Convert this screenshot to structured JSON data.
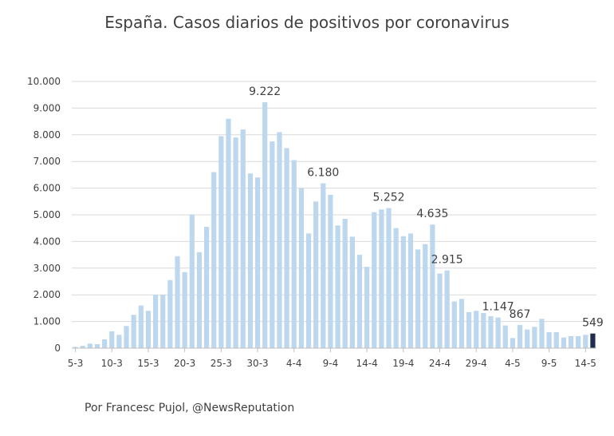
{
  "chart_data": {
    "type": "bar",
    "title": "España. Casos diarios de positivos por coronavirus",
    "source": "Por Francesc Pujol, @NewsReputation",
    "xlabel": "",
    "ylabel": "",
    "ylim": [
      0,
      10000
    ],
    "yticks": [
      "0",
      "1.000",
      "2.000",
      "3.000",
      "4.000",
      "5.000",
      "6.000",
      "7.000",
      "8.000",
      "9.000",
      "10.000"
    ],
    "ytick_values": [
      0,
      1000,
      2000,
      3000,
      4000,
      5000,
      6000,
      7000,
      8000,
      9000,
      10000
    ],
    "grid": true,
    "categories": [
      "5-3",
      "6-3",
      "7-3",
      "8-3",
      "9-3",
      "10-3",
      "11-3",
      "12-3",
      "13-3",
      "14-3",
      "15-3",
      "16-3",
      "17-3",
      "18-3",
      "19-3",
      "20-3",
      "21-3",
      "22-3",
      "23-3",
      "24-3",
      "25-3",
      "26-3",
      "27-3",
      "28-3",
      "29-3",
      "30-3",
      "31-3",
      "1-4",
      "2-4",
      "3-4",
      "4-4",
      "5-4",
      "6-4",
      "7-4",
      "8-4",
      "9-4",
      "10-4",
      "11-4",
      "12-4",
      "13-4",
      "14-4",
      "15-4",
      "16-4",
      "17-4",
      "18-4",
      "19-4",
      "20-4",
      "21-4",
      "22-4",
      "23-4",
      "24-4",
      "25-4",
      "26-4",
      "27-4",
      "28-4",
      "29-4",
      "30-4",
      "1-5",
      "2-5",
      "3-5",
      "4-5",
      "5-5",
      "6-5",
      "7-5",
      "8-5",
      "9-5",
      "10-5",
      "11-5",
      "12-5",
      "13-5",
      "14-5",
      "15-5"
    ],
    "xtick_labels": [
      "5-3",
      "10-3",
      "15-3",
      "20-3",
      "25-3",
      "30-3",
      "4-4",
      "9-4",
      "14-4",
      "19-4",
      "24-4",
      "29-4",
      "4-5",
      "9-5",
      "14-5"
    ],
    "values": [
      50,
      90,
      170,
      150,
      330,
      630,
      500,
      830,
      1250,
      1600,
      1400,
      2000,
      2000,
      2550,
      3450,
      2850,
      5000,
      3600,
      4550,
      6600,
      7950,
      8600,
      7900,
      8200,
      6550,
      6400,
      9222,
      7750,
      8100,
      7500,
      7050,
      6000,
      4300,
      5500,
      6180,
      5750,
      4600,
      4850,
      4180,
      3500,
      3050,
      5100,
      5200,
      5252,
      4500,
      4200,
      4300,
      3700,
      3900,
      4635,
      2800,
      2915,
      1750,
      1850,
      1350,
      1400,
      1320,
      1200,
      1147,
      850,
      380,
      867,
      700,
      800,
      1100,
      600,
      600,
      400,
      450,
      450,
      500,
      549
    ],
    "bar_color": "#bdd7ee",
    "highlight_color": "#1f2d4e",
    "highlight_index": 71,
    "data_labels": [
      {
        "index": 26,
        "text": "9.222"
      },
      {
        "index": 34,
        "text": "6.180"
      },
      {
        "index": 43,
        "text": "5.252"
      },
      {
        "index": 49,
        "text": "4.635"
      },
      {
        "index": 51,
        "text": "2.915"
      },
      {
        "index": 58,
        "text": "1.147"
      },
      {
        "index": 61,
        "text": "867"
      },
      {
        "index": 71,
        "text": "549"
      }
    ]
  }
}
